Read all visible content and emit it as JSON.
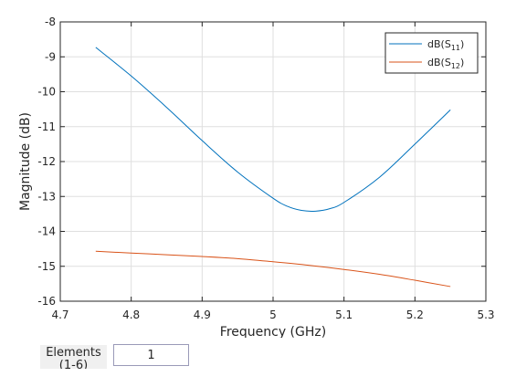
{
  "chart_data": {
    "type": "line",
    "xlabel": "Frequency (GHz)",
    "ylabel": "Magnitude (dB)",
    "xlim": [
      4.7,
      5.3
    ],
    "ylim": [
      -16,
      -8
    ],
    "xticks": [
      "4.7",
      "4.8",
      "4.9",
      "5",
      "5.1",
      "5.2",
      "5.3"
    ],
    "yticks": [
      "-8",
      "-9",
      "-10",
      "-11",
      "-12",
      "-13",
      "-14",
      "-15",
      "-16"
    ],
    "grid": true,
    "legend_position": "top-right",
    "series": [
      {
        "name": "dB(S11)",
        "legend_base": "dB(S",
        "legend_sub": "11",
        "legend_end": ")",
        "color": "#0072bd",
        "x": [
          4.75,
          4.8,
          4.85,
          4.9,
          4.95,
          5.0,
          5.02,
          5.04,
          5.06,
          5.08,
          5.1,
          5.15,
          5.2,
          5.25
        ],
        "y": [
          -8.73,
          -9.55,
          -10.45,
          -11.4,
          -12.3,
          -13.05,
          -13.28,
          -13.4,
          -13.42,
          -13.35,
          -13.17,
          -12.45,
          -11.5,
          -10.52
        ]
      },
      {
        "name": "dB(S12)",
        "legend_base": "dB(S",
        "legend_sub": "12",
        "legend_end": ")",
        "color": "#d95319",
        "x": [
          4.75,
          4.8,
          4.85,
          4.9,
          4.95,
          5.0,
          5.05,
          5.1,
          5.15,
          5.2,
          5.25
        ],
        "y": [
          -14.57,
          -14.62,
          -14.67,
          -14.72,
          -14.78,
          -14.87,
          -14.97,
          -15.09,
          -15.23,
          -15.4,
          -15.58
        ]
      }
    ]
  },
  "controls": {
    "elements_label": "Elements",
    "elements_label_partial": "(1-6)",
    "elements_value": "1"
  }
}
